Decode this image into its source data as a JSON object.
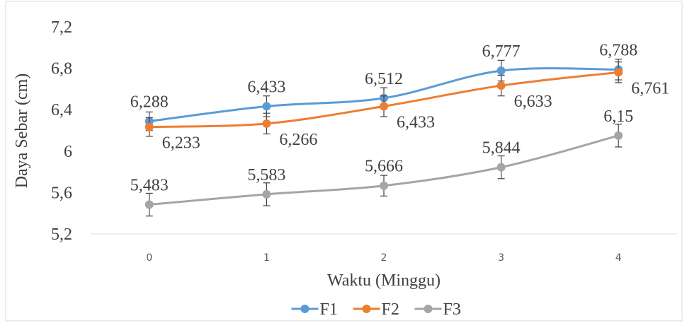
{
  "chart_data": {
    "type": "line",
    "x_label": "Waktu (Minggu)",
    "y_label": "Daya Sebar (cm)",
    "categories": [
      "0",
      "1",
      "2",
      "3",
      "4"
    ],
    "ylim": [
      5.2,
      7.2
    ],
    "yticks": [
      {
        "value": 5.2,
        "label": "5,2"
      },
      {
        "value": 5.6,
        "label": "5,6"
      },
      6,
      {
        "value": 6.4,
        "label": "6,4"
      },
      {
        "value": 6.8,
        "label": "6,8"
      },
      {
        "value": 7.2,
        "label": "7,2"
      }
    ],
    "legend": "bottom",
    "series": [
      {
        "name": "F1",
        "color": "#5b9bd5",
        "values": [
          6.288,
          6.433,
          6.512,
          6.777,
          6.788
        ],
        "value_labels": [
          "6,288",
          "6,433",
          "6,512",
          "6,777",
          "6,788"
        ],
        "errors": [
          0.09,
          0.1,
          0.1,
          0.1,
          0.1
        ]
      },
      {
        "name": "F2",
        "color": "#ed7d31",
        "values": [
          6.233,
          6.266,
          6.433,
          6.633,
          6.761
        ],
        "value_labels": [
          "6,233",
          "6,266",
          "6,433",
          "6,633",
          "6,761"
        ],
        "errors": [
          0.09,
          0.1,
          0.1,
          0.1,
          0.1
        ]
      },
      {
        "name": "F3",
        "color": "#a5a5a5",
        "values": [
          5.483,
          5.583,
          5.666,
          5.844,
          6.15
        ],
        "value_labels": [
          "5,483",
          "5,583",
          "5,666",
          "5,844",
          "6,15"
        ],
        "errors": [
          0.11,
          0.11,
          0.1,
          0.11,
          0.11
        ]
      }
    ]
  }
}
